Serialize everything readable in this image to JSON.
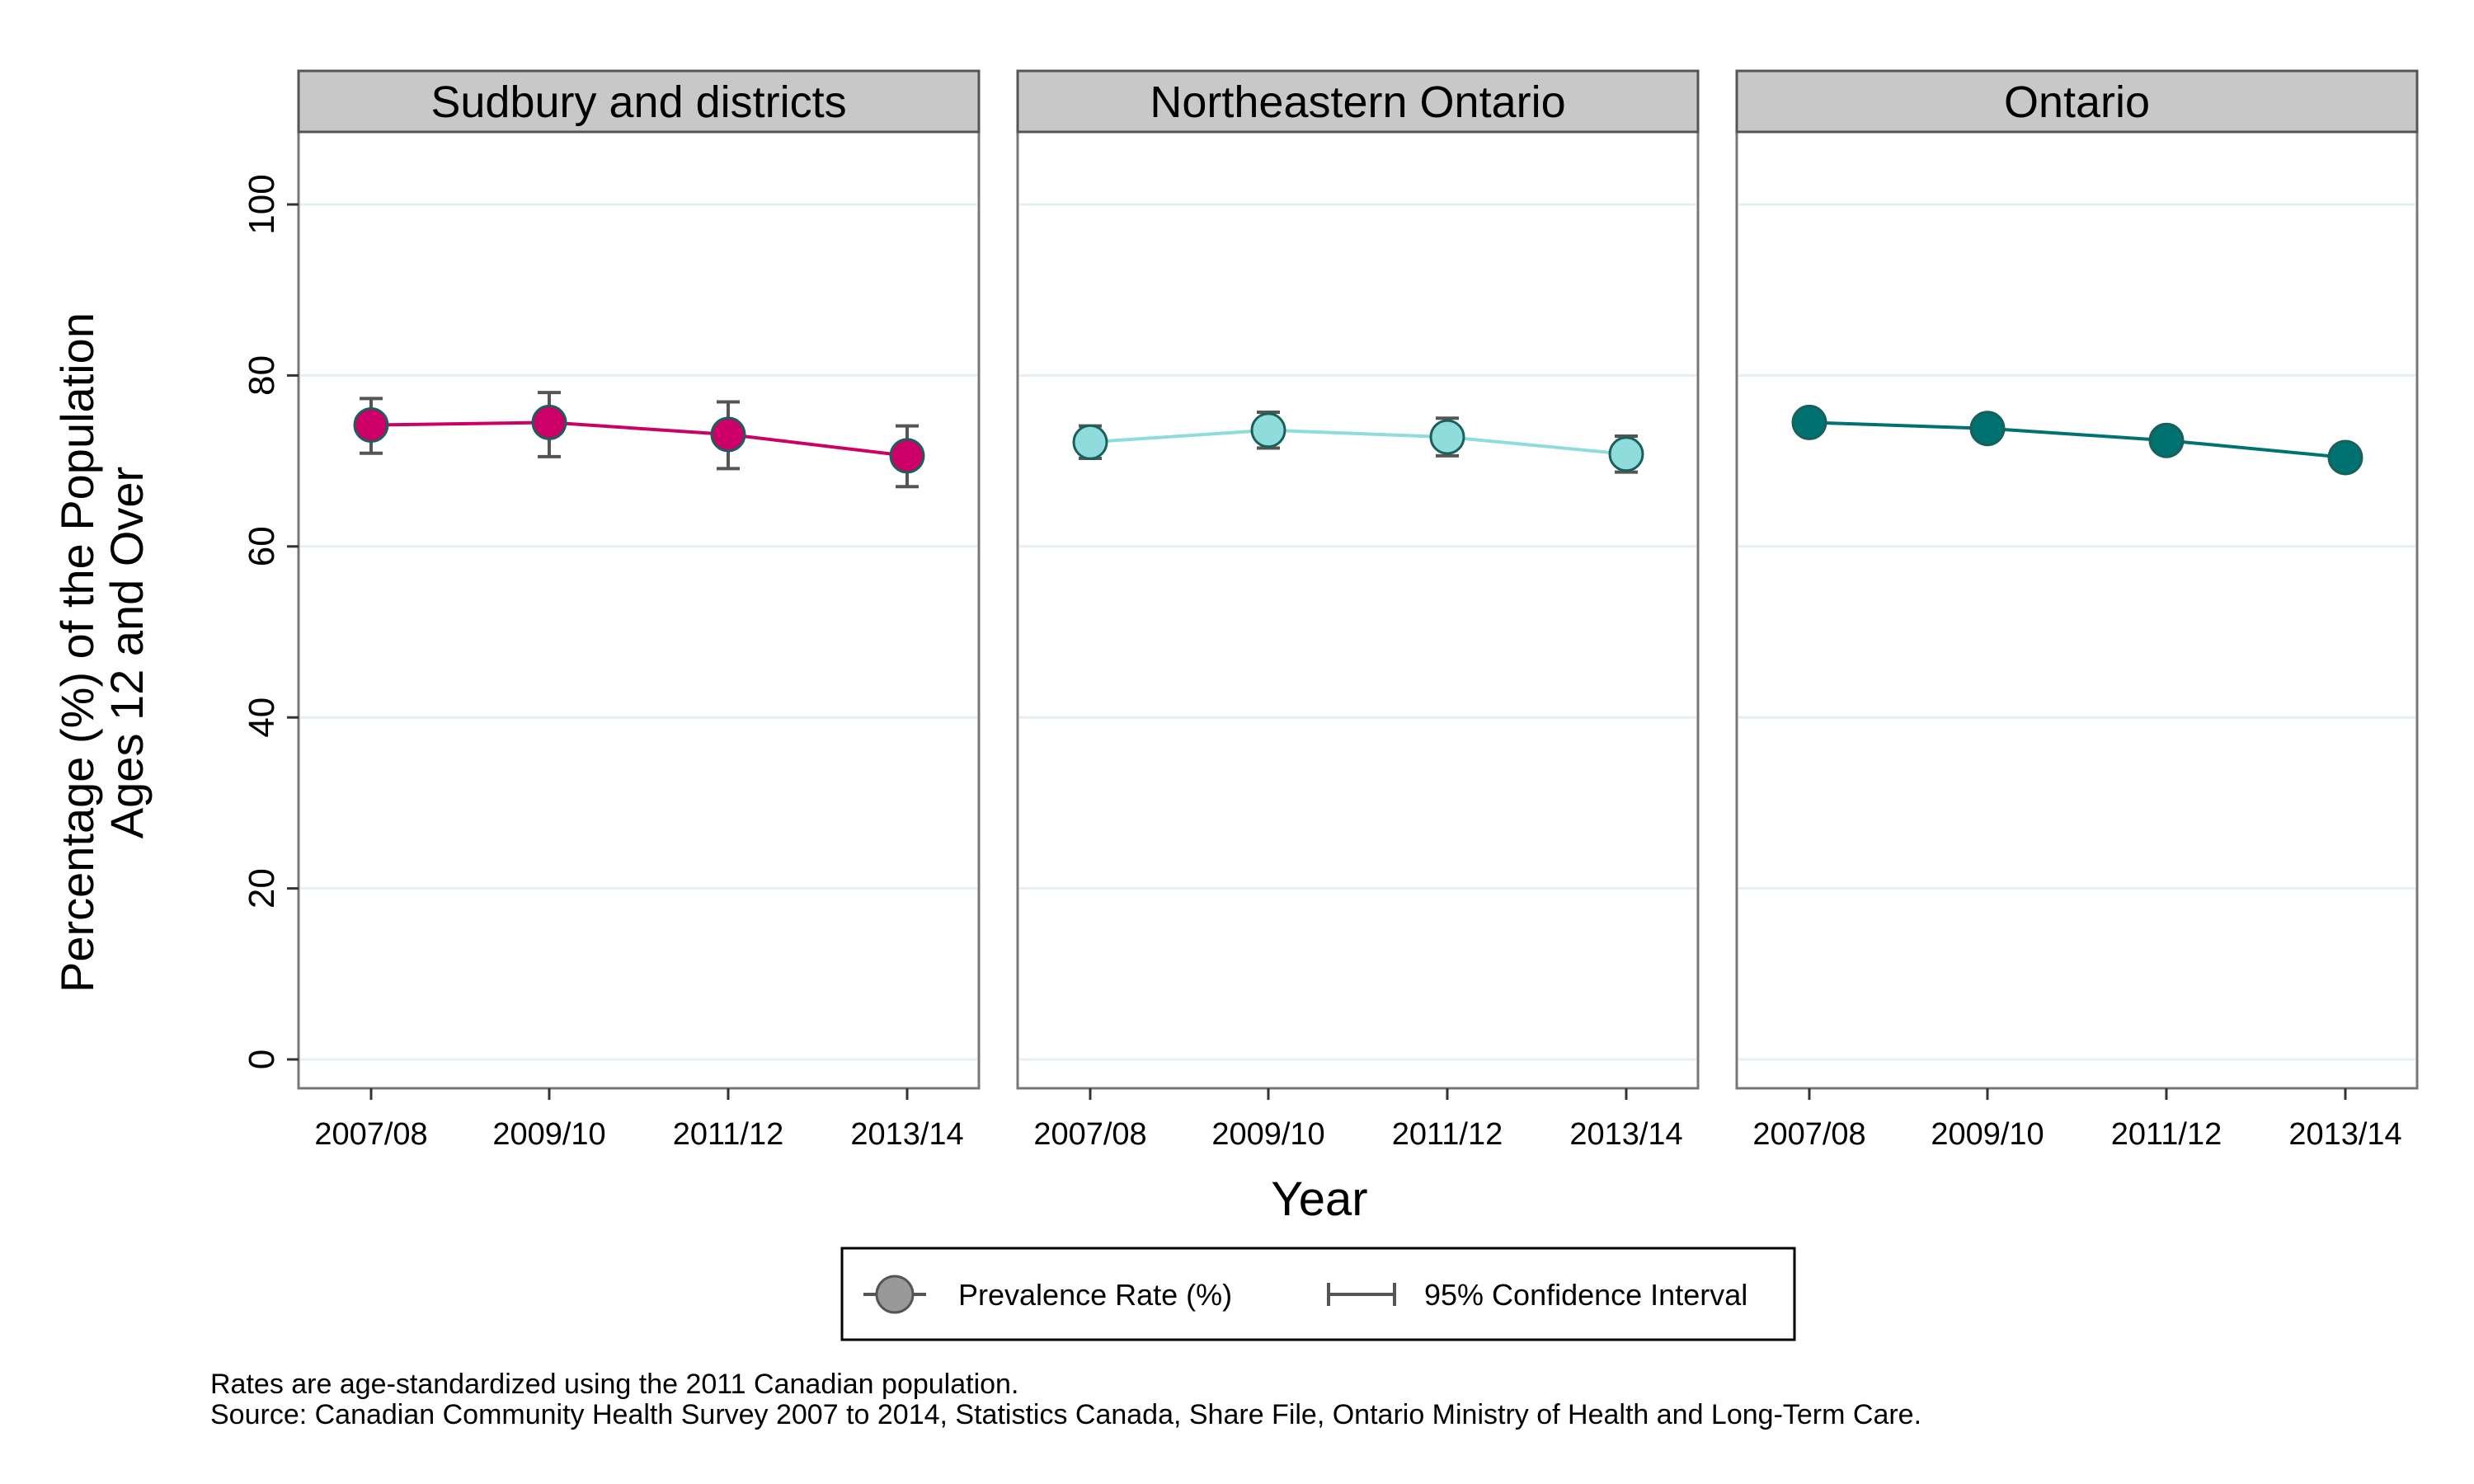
{
  "chart_data": {
    "type": "line",
    "ylabel_lines": [
      "Percentage (%) of the Population",
      "Ages 12 and Over"
    ],
    "xlabel": "Year",
    "ylim": [
      0,
      100
    ],
    "yticks": [
      0,
      20,
      40,
      60,
      80,
      100
    ],
    "categories": [
      "2007/08",
      "2009/10",
      "2011/12",
      "2013/14"
    ],
    "grid": true,
    "legend_position": "bottom",
    "panels": [
      {
        "title": "Sudbury and districts",
        "color": "#cc0066",
        "values": [
          74.2,
          74.5,
          73.1,
          70.6
        ],
        "ci_lower": [
          70.9,
          70.5,
          69.1,
          67.0
        ],
        "ci_upper": [
          77.3,
          78.0,
          76.9,
          74.1
        ]
      },
      {
        "title": "Northeastern Ontario",
        "color": "#8fdcdc",
        "values": [
          72.2,
          73.6,
          72.8,
          70.8
        ],
        "ci_lower": [
          70.3,
          71.5,
          70.6,
          68.7
        ],
        "ci_upper": [
          74.1,
          75.7,
          75.0,
          72.9
        ]
      },
      {
        "title": "Ontario",
        "color": "#007272",
        "values": [
          74.5,
          73.8,
          72.4,
          70.4
        ],
        "ci_lower": [
          74.1,
          73.4,
          72.0,
          70.0
        ],
        "ci_upper": [
          74.9,
          74.2,
          72.8,
          70.8
        ]
      }
    ],
    "legend": [
      {
        "label": "Prevalence Rate (%)",
        "symbol": "marker",
        "color": "#999999"
      },
      {
        "label": "95% Confidence Interval",
        "symbol": "ci",
        "color": "#555555"
      }
    ]
  },
  "notes": [
    "Rates are age-standardized using the 2011 Canadian population.",
    "Source: Canadian Community Health Survey 2007 to 2014, Statistics Canada, Share File, Ontario Ministry of Health and Long-Term Care."
  ]
}
